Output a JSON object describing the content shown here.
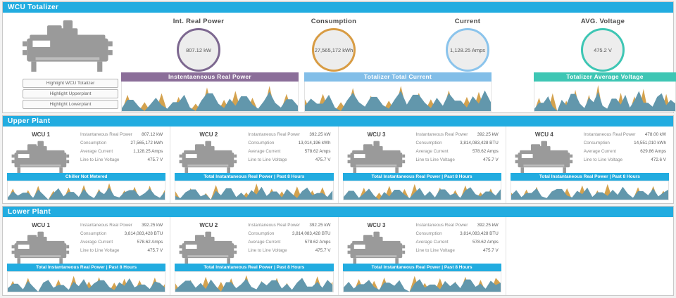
{
  "colors": {
    "cyan": "#22ACE0",
    "purple": "#8B6E99",
    "orange": "#D89C44",
    "lightblue": "#82BEE8",
    "teal": "#3EC6B4",
    "spark_blue": "#6297AC",
    "spark_orange": "#D4A24E"
  },
  "totalizer": {
    "title": "WCU Totalizer",
    "buttons": [
      "Highlight WCU Totalizer",
      "Highlight Upperplant",
      "Highlight Lowerplant"
    ],
    "gauges": [
      {
        "label": "Int. Real Power",
        "value": "807.12 kW",
        "ring": "#7D6890"
      },
      {
        "label": "Consumption",
        "value": "27,565,172 kWh",
        "ring": "#D89C44"
      },
      {
        "label": "Current",
        "value": "1,128.25 Amps",
        "ring": "#8BC4EC"
      },
      {
        "label": "AVG. Voltage",
        "value": "475.2 V",
        "ring": "#3EC6B4"
      }
    ],
    "charts": [
      {
        "title": "Instentaeneous Real Power",
        "color": "#8B6E99",
        "values": [
          10,
          38,
          38,
          15,
          0,
          22,
          45,
          20,
          8,
          30,
          30,
          55,
          12,
          0,
          35,
          60,
          60,
          25,
          10,
          42,
          18,
          50,
          50,
          22,
          8,
          33,
          65,
          28,
          12,
          40,
          40,
          18
        ],
        "spikes": [
          0,
          55,
          0,
          0,
          30,
          0,
          0,
          60,
          0,
          0,
          48,
          0,
          0,
          25,
          0,
          80,
          0,
          0,
          38,
          0,
          68,
          0,
          0,
          45,
          0,
          0,
          85,
          0,
          0,
          58,
          0,
          0
        ]
      },
      {
        "title": "Totalizer Total Current",
        "color": "#82BEE8",
        "values": [
          18,
          42,
          25,
          25,
          55,
          12,
          0,
          35,
          62,
          30,
          15,
          48,
          48,
          20,
          8,
          40,
          68,
          22,
          55,
          55,
          28,
          10,
          45,
          18,
          60,
          35,
          35,
          12,
          50,
          25,
          70,
          30
        ],
        "spikes": [
          40,
          0,
          0,
          58,
          0,
          0,
          30,
          0,
          78,
          0,
          0,
          52,
          0,
          0,
          35,
          0,
          85,
          0,
          0,
          62,
          0,
          40,
          0,
          0,
          70,
          0,
          0,
          48,
          0,
          65,
          0,
          0
        ]
      },
      {
        "title": "Totalizer Average Voltage",
        "color": "#3EC6B4",
        "values": [
          8,
          28,
          28,
          50,
          15,
          0,
          38,
          20,
          58,
          58,
          25,
          10,
          45,
          30,
          65,
          18,
          8,
          42,
          42,
          22,
          55,
          12,
          35,
          68,
          28,
          28,
          15,
          48,
          60,
          20,
          38,
          25
        ],
        "spikes": [
          0,
          45,
          0,
          0,
          60,
          0,
          0,
          35,
          0,
          72,
          0,
          0,
          55,
          0,
          88,
          0,
          0,
          40,
          0,
          62,
          0,
          0,
          50,
          0,
          75,
          0,
          0,
          38,
          0,
          58,
          0,
          30
        ]
      }
    ]
  },
  "upper_plant": {
    "title": "Upper Plant",
    "units": [
      {
        "name": "WCU 1",
        "rows": [
          {
            "label": "Instantaneous Real Power",
            "value": "807.12 kW"
          },
          {
            "label": "Consumption",
            "value": "27,565,172 kWh"
          },
          {
            "label": "Average Current",
            "value": "1,128.25 Amps"
          },
          {
            "label": "Line to Line Voltage",
            "value": "475.7 V"
          }
        ],
        "banner": "Chiller Not Metered",
        "chart": {
          "values": [
            12,
            45,
            22,
            38,
            38,
            10,
            55,
            28,
            0,
            35,
            62,
            18,
            42,
            42,
            15,
            58,
            25,
            8,
            48,
            30,
            66,
            20,
            12,
            40,
            52,
            52,
            18,
            35,
            60,
            25,
            10,
            44
          ],
          "spikes": [
            0,
            60,
            0,
            0,
            52,
            0,
            75,
            0,
            0,
            48,
            0,
            0,
            66,
            0,
            0,
            80,
            0,
            0,
            58,
            0,
            90,
            0,
            0,
            50,
            0,
            70,
            0,
            0,
            76,
            0,
            0,
            55
          ]
        }
      },
      {
        "name": "WCU 2",
        "rows": [
          {
            "label": "Instantaneous Real Power",
            "value": "392.25 kW"
          },
          {
            "label": "Consumption",
            "value": "13,014,196 kWh"
          },
          {
            "label": "Average Current",
            "value": "578.62 Amps"
          },
          {
            "label": "Line to Line Voltage",
            "value": "475.7 V"
          }
        ],
        "banner": "Total Instantaneous Real Power | Past 8 Hours",
        "chart": {
          "values": [
            20,
            8,
            40,
            56,
            56,
            18,
            30,
            0,
            48,
            24,
            62,
            62,
            14,
            38,
            10,
            52,
            28,
            70,
            20,
            44,
            44,
            12,
            58,
            32,
            8,
            46,
            66,
            24,
            36,
            36,
            15,
            50
          ],
          "spikes": [
            45,
            0,
            0,
            62,
            0,
            0,
            35,
            0,
            80,
            0,
            0,
            55,
            0,
            0,
            40,
            0,
            88,
            0,
            0,
            60,
            0,
            45,
            0,
            0,
            72,
            0,
            0,
            50,
            0,
            68,
            0,
            0
          ]
        }
      },
      {
        "name": "WCU 3",
        "rows": [
          {
            "label": "Instantaneous Real Power",
            "value": "392.25 kW"
          },
          {
            "label": "Consumption",
            "value": "3,814,083,428 BTU"
          },
          {
            "label": "Average Current",
            "value": "578.62 Amps"
          },
          {
            "label": "Line to Line Voltage",
            "value": "475.7 V"
          }
        ],
        "banner": "Total Instantaneous Real Power | Past 8 Hours",
        "chart": {
          "values": [
            15,
            48,
            48,
            10,
            32,
            60,
            22,
            0,
            42,
            18,
            54,
            54,
            28,
            8,
            38,
            64,
            20,
            46,
            12,
            56,
            56,
            25,
            35,
            10,
            50,
            68,
            30,
            18,
            44,
            44,
            22,
            58
          ],
          "spikes": [
            0,
            50,
            0,
            0,
            65,
            0,
            0,
            38,
            0,
            75,
            0,
            0,
            58,
            0,
            85,
            0,
            0,
            42,
            0,
            66,
            0,
            0,
            52,
            0,
            78,
            0,
            0,
            40,
            0,
            60,
            0,
            35
          ]
        }
      },
      {
        "name": "WCU 4",
        "rows": [
          {
            "label": "Instantaneous Real Power",
            "value": "478.00 kW"
          },
          {
            "label": "Consumption",
            "value": "14,551,010 kWh"
          },
          {
            "label": "Average Current",
            "value": "629.86 Amps"
          },
          {
            "label": "Line to Line Voltage",
            "value": "472.6 V"
          }
        ],
        "banner": "Total Instantaneous Real Power | Past 8 Hours",
        "chart": {
          "values": [
            25,
            52,
            14,
            36,
            36,
            62,
            18,
            8,
            44,
            58,
            58,
            22,
            12,
            48,
            30,
            66,
            15,
            40,
            40,
            20,
            54,
            26,
            70,
            32,
            10,
            46,
            46,
            24,
            60,
            18,
            38,
            55
          ],
          "spikes": [
            38,
            0,
            0,
            55,
            0,
            70,
            0,
            0,
            45,
            0,
            0,
            62,
            0,
            0,
            78,
            0,
            0,
            50,
            0,
            85,
            0,
            0,
            58,
            0,
            0,
            68,
            0,
            0,
            74,
            0,
            48,
            0
          ]
        }
      }
    ]
  },
  "lower_plant": {
    "title": "Lower Plant",
    "units": [
      {
        "name": "WCU 1",
        "rows": [
          {
            "label": "Instantaneous Real Power",
            "value": "392.25 kW"
          },
          {
            "label": "Consumption",
            "value": "3,814,083,428 BTU"
          },
          {
            "label": "Average Current",
            "value": "578.62 Amps"
          },
          {
            "label": "Line to Line Voltage",
            "value": "475.7 V"
          }
        ],
        "banner": "Total Instantaneous Real Power | Past 8 Hours",
        "chart": {
          "values": [
            18,
            40,
            40,
            12,
            54,
            26,
            0,
            46,
            60,
            20,
            34,
            34,
            10,
            50,
            28,
            64,
            16,
            42,
            58,
            58,
            24,
            8,
            48,
            30,
            68,
            22,
            36,
            36,
            14,
            52,
            44,
            20
          ],
          "spikes": [
            0,
            55,
            0,
            0,
            70,
            0,
            0,
            45,
            0,
            0,
            62,
            0,
            0,
            80,
            0,
            0,
            52,
            0,
            74,
            0,
            0,
            46,
            0,
            66,
            0,
            0,
            58,
            0,
            0,
            72,
            0,
            40
          ]
        }
      },
      {
        "name": "WCU 2",
        "rows": [
          {
            "label": "Instantaneous Real Power",
            "value": "392.25 kW"
          },
          {
            "label": "Consumption",
            "value": "3,814,083,428 BTU"
          },
          {
            "label": "Average Current",
            "value": "578.62 Amps"
          },
          {
            "label": "Line to Line Voltage",
            "value": "475.7 V"
          }
        ],
        "banner": "Total Instantaneous Real Power | Past 8 Hours",
        "chart": {
          "values": [
            10,
            34,
            56,
            56,
            20,
            44,
            14,
            62,
            28,
            0,
            48,
            48,
            18,
            38,
            66,
            24,
            12,
            52,
            32,
            58,
            58,
            16,
            40,
            10,
            46,
            70,
            26,
            26,
            50,
            20,
            60,
            35
          ],
          "spikes": [
            42,
            0,
            0,
            60,
            0,
            0,
            76,
            0,
            0,
            50,
            0,
            68,
            0,
            0,
            84,
            0,
            0,
            54,
            0,
            0,
            70,
            0,
            44,
            0,
            0,
            64,
            0,
            0,
            78,
            0,
            0,
            52
          ]
        }
      },
      {
        "name": "WCU 3",
        "rows": [
          {
            "label": "Instantaneous Real Power",
            "value": "392.25 kW"
          },
          {
            "label": "Consumption",
            "value": "3,814,083,428 BTU"
          },
          {
            "label": "Average Current",
            "value": "578.62 Amps"
          },
          {
            "label": "Line to Line Voltage",
            "value": "475.7 V"
          }
        ],
        "banner": "Total Instantaneous Real Power | Past 8 Hours",
        "chart": {
          "values": [
            22,
            50,
            16,
            38,
            38,
            60,
            24,
            10,
            46,
            46,
            30,
            58,
            14,
            0,
            42,
            64,
            20,
            36,
            36,
            12,
            54,
            28,
            48,
            18,
            62,
            62,
            25,
            40,
            15,
            56,
            34,
            46
          ],
          "spikes": [
            0,
            48,
            0,
            64,
            0,
            0,
            55,
            0,
            72,
            0,
            0,
            58,
            0,
            0,
            80,
            0,
            44,
            0,
            0,
            68,
            0,
            0,
            52,
            0,
            76,
            0,
            0,
            60,
            0,
            0,
            70,
            42
          ]
        }
      }
    ]
  }
}
